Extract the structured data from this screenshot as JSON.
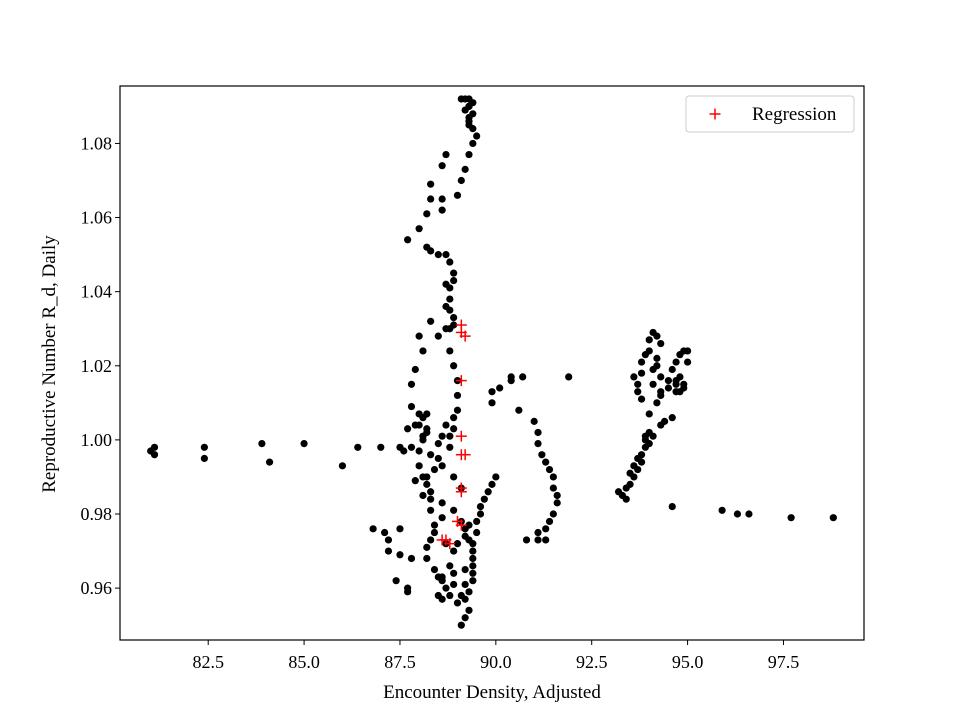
{
  "chart_data": {
    "type": "scatter",
    "title": "",
    "xlabel": "Encounter Density, Adjusted",
    "ylabel": "Reproductive Number R_d, Daily",
    "xlim": [
      80.2,
      99.6
    ],
    "ylim": [
      0.946,
      1.0955
    ],
    "xticks": [
      82.5,
      85.0,
      87.5,
      90.0,
      92.5,
      95.0,
      97.5
    ],
    "xtick_labels": [
      "82.5",
      "85.0",
      "87.5",
      "90.0",
      "92.5",
      "95.0",
      "97.5"
    ],
    "yticks": [
      0.96,
      0.98,
      1.0,
      1.02,
      1.04,
      1.06,
      1.08
    ],
    "ytick_labels": [
      "0.96",
      "0.98",
      "1.00",
      "1.02",
      "1.04",
      "1.06",
      "1.08"
    ],
    "grid": false,
    "legend": {
      "placement": "upper-right",
      "entries": [
        {
          "label": "Regression",
          "marker": "+",
          "color": "#ff0000"
        }
      ]
    },
    "colors": {
      "observed": "#000000",
      "regression": "#ff0000"
    },
    "series": [
      {
        "marker": "circle",
        "color": "#000000",
        "points": [
          [
            81.0,
            0.997
          ],
          [
            81.1,
            0.998
          ],
          [
            81.1,
            0.996
          ],
          [
            82.4,
            0.998
          ],
          [
            82.4,
            0.995
          ],
          [
            83.9,
            0.999
          ],
          [
            84.1,
            0.994
          ],
          [
            85.0,
            0.999
          ],
          [
            86.0,
            0.993
          ],
          [
            86.4,
            0.998
          ],
          [
            87.0,
            0.998
          ],
          [
            87.5,
            0.998
          ],
          [
            87.6,
            0.997
          ],
          [
            87.8,
            0.998
          ],
          [
            88.0,
            0.997
          ],
          [
            88.3,
            0.996
          ],
          [
            88.6,
            0.993
          ],
          [
            88.9,
            0.99
          ],
          [
            89.1,
            0.987
          ],
          [
            86.8,
            0.976
          ],
          [
            87.1,
            0.975
          ],
          [
            87.2,
            0.973
          ],
          [
            87.5,
            0.976
          ],
          [
            87.2,
            0.97
          ],
          [
            87.5,
            0.969
          ],
          [
            87.8,
            0.968
          ],
          [
            87.4,
            0.962
          ],
          [
            87.7,
            0.96
          ],
          [
            87.7,
            0.959
          ],
          [
            88.2,
            0.968
          ],
          [
            88.4,
            0.965
          ],
          [
            88.5,
            0.963
          ],
          [
            88.6,
            0.962
          ],
          [
            88.7,
            0.96
          ],
          [
            88.5,
            0.958
          ],
          [
            88.6,
            0.957
          ],
          [
            88.8,
            0.958
          ],
          [
            89.0,
            0.956
          ],
          [
            89.1,
            0.958
          ],
          [
            88.6,
            0.963
          ],
          [
            88.9,
            0.964
          ],
          [
            89.2,
            0.965
          ],
          [
            89.4,
            0.964
          ],
          [
            88.9,
            0.961
          ],
          [
            88.8,
            0.966
          ],
          [
            88.7,
            0.972
          ],
          [
            88.9,
            0.97
          ],
          [
            89.0,
            0.972
          ],
          [
            89.3,
            0.973
          ],
          [
            89.2,
            0.961
          ],
          [
            89.3,
            0.959
          ],
          [
            89.2,
            0.957
          ],
          [
            89.3,
            0.954
          ],
          [
            89.2,
            0.952
          ],
          [
            89.1,
            0.95
          ],
          [
            89.4,
            0.962
          ],
          [
            89.4,
            0.966
          ],
          [
            89.4,
            0.968
          ],
          [
            89.4,
            0.97
          ],
          [
            89.4,
            0.972
          ],
          [
            89.5,
            0.975
          ],
          [
            89.5,
            0.978
          ],
          [
            89.6,
            0.98
          ],
          [
            89.6,
            0.982
          ],
          [
            89.7,
            0.984
          ],
          [
            89.8,
            0.986
          ],
          [
            89.9,
            0.988
          ],
          [
            90.0,
            0.99
          ],
          [
            89.2,
            0.976
          ],
          [
            89.3,
            0.977
          ],
          [
            89.2,
            0.974
          ],
          [
            89.1,
            0.978
          ],
          [
            88.9,
            0.981
          ],
          [
            88.6,
            0.983
          ],
          [
            88.6,
            0.979
          ],
          [
            88.4,
            0.977
          ],
          [
            88.4,
            0.975
          ],
          [
            88.3,
            0.973
          ],
          [
            88.2,
            0.971
          ],
          [
            88.3,
            0.984
          ],
          [
            88.3,
            0.986
          ],
          [
            88.2,
            0.988
          ],
          [
            88.2,
            0.99
          ],
          [
            88.0,
            0.993
          ],
          [
            88.1,
            0.99
          ],
          [
            88.4,
            0.992
          ],
          [
            88.5,
            0.995
          ],
          [
            88.1,
            0.985
          ],
          [
            87.9,
            0.989
          ],
          [
            88.3,
            0.981
          ],
          [
            88.1,
            1.0
          ],
          [
            88.2,
            1.002
          ],
          [
            88.0,
            1.004
          ],
          [
            88.1,
            1.006
          ],
          [
            88.2,
            1.007
          ],
          [
            88.0,
            1.007
          ],
          [
            87.9,
            1.004
          ],
          [
            88.2,
            1.003
          ],
          [
            88.1,
            1.001
          ],
          [
            87.7,
            1.003
          ],
          [
            87.8,
            1.009
          ],
          [
            87.8,
            1.015
          ],
          [
            87.9,
            1.019
          ],
          [
            88.1,
            1.024
          ],
          [
            88.0,
            1.028
          ],
          [
            88.3,
            1.032
          ],
          [
            88.5,
            1.028
          ],
          [
            88.7,
            1.03
          ],
          [
            88.8,
            1.024
          ],
          [
            88.9,
            1.02
          ],
          [
            89.0,
            1.016
          ],
          [
            89.0,
            1.012
          ],
          [
            89.0,
            1.008
          ],
          [
            88.9,
            1.006
          ],
          [
            88.9,
            1.003
          ],
          [
            88.8,
            1.001
          ],
          [
            88.8,
            0.998
          ],
          [
            88.7,
            1.004
          ],
          [
            88.6,
            1.001
          ],
          [
            88.5,
            0.999
          ],
          [
            88.8,
            1.038
          ],
          [
            88.8,
            1.041
          ],
          [
            88.9,
            1.043
          ],
          [
            88.9,
            1.045
          ],
          [
            88.8,
            1.048
          ],
          [
            88.7,
            1.05
          ],
          [
            88.5,
            1.05
          ],
          [
            88.3,
            1.051
          ],
          [
            88.2,
            1.052
          ],
          [
            88.8,
            1.035
          ],
          [
            88.9,
            1.033
          ],
          [
            88.9,
            1.031
          ],
          [
            88.8,
            1.03
          ],
          [
            88.7,
            1.036
          ],
          [
            88.7,
            1.042
          ],
          [
            88.0,
            1.057
          ],
          [
            87.7,
            1.054
          ],
          [
            88.2,
            1.061
          ],
          [
            88.3,
            1.065
          ],
          [
            88.3,
            1.069
          ],
          [
            88.6,
            1.074
          ],
          [
            88.7,
            1.077
          ],
          [
            88.6,
            1.065
          ],
          [
            88.6,
            1.062
          ],
          [
            89.0,
            1.066
          ],
          [
            89.1,
            1.07
          ],
          [
            89.2,
            1.073
          ],
          [
            89.3,
            1.077
          ],
          [
            89.4,
            1.08
          ],
          [
            89.5,
            1.082
          ],
          [
            89.3,
            1.085
          ],
          [
            89.3,
            1.087
          ],
          [
            89.4,
            1.088
          ],
          [
            89.3,
            1.09
          ],
          [
            89.2,
            1.092
          ],
          [
            89.1,
            1.092
          ],
          [
            89.3,
            1.092
          ],
          [
            89.4,
            1.091
          ],
          [
            89.3,
            1.09
          ],
          [
            89.2,
            1.089
          ],
          [
            89.3,
            1.086
          ],
          [
            89.4,
            1.084
          ],
          [
            89.9,
            1.013
          ],
          [
            89.9,
            1.01
          ],
          [
            90.1,
            1.014
          ],
          [
            90.4,
            1.016
          ],
          [
            90.4,
            1.017
          ],
          [
            90.7,
            1.017
          ],
          [
            90.6,
            1.008
          ],
          [
            91.9,
            1.017
          ],
          [
            91.0,
            1.005
          ],
          [
            91.1,
            1.002
          ],
          [
            91.1,
            0.999
          ],
          [
            91.2,
            0.996
          ],
          [
            91.3,
            0.994
          ],
          [
            91.4,
            0.992
          ],
          [
            91.5,
            0.99
          ],
          [
            91.5,
            0.987
          ],
          [
            91.6,
            0.985
          ],
          [
            91.6,
            0.983
          ],
          [
            91.5,
            0.98
          ],
          [
            91.4,
            0.978
          ],
          [
            91.3,
            0.976
          ],
          [
            91.1,
            0.975
          ],
          [
            91.1,
            0.973
          ],
          [
            91.3,
            0.973
          ],
          [
            90.8,
            0.973
          ],
          [
            93.2,
            0.986
          ],
          [
            93.3,
            0.985
          ],
          [
            93.4,
            0.987
          ],
          [
            93.4,
            0.984
          ],
          [
            93.5,
            0.988
          ],
          [
            93.5,
            0.991
          ],
          [
            93.6,
            0.993
          ],
          [
            93.7,
            0.995
          ],
          [
            93.8,
            0.996
          ],
          [
            93.9,
            0.998
          ],
          [
            93.9,
            1.0
          ],
          [
            93.9,
            1.001
          ],
          [
            94.0,
            1.002
          ],
          [
            94.1,
            1.001
          ],
          [
            94.0,
            0.999
          ],
          [
            93.8,
            0.994
          ],
          [
            93.7,
            0.992
          ],
          [
            93.6,
            0.99
          ],
          [
            94.0,
            1.007
          ],
          [
            94.2,
            1.01
          ],
          [
            94.3,
            1.012
          ],
          [
            94.5,
            1.014
          ],
          [
            94.7,
            1.013
          ],
          [
            94.8,
            1.013
          ],
          [
            94.9,
            1.015
          ],
          [
            94.8,
            1.017
          ],
          [
            94.7,
            1.015
          ],
          [
            94.5,
            1.016
          ],
          [
            94.3,
            1.017
          ],
          [
            94.2,
            1.02
          ],
          [
            94.2,
            1.022
          ],
          [
            94.0,
            1.024
          ],
          [
            94.0,
            1.027
          ],
          [
            94.1,
            1.029
          ],
          [
            94.2,
            1.028
          ],
          [
            94.3,
            1.026
          ],
          [
            94.1,
            1.019
          ],
          [
            93.6,
            1.017
          ],
          [
            93.7,
            1.015
          ],
          [
            93.8,
            1.018
          ],
          [
            93.8,
            1.021
          ],
          [
            93.9,
            1.023
          ],
          [
            93.7,
            1.013
          ],
          [
            93.8,
            1.011
          ],
          [
            94.3,
            1.004
          ],
          [
            94.4,
            1.005
          ],
          [
            94.6,
            1.006
          ],
          [
            94.1,
            1.015
          ],
          [
            94.3,
            1.013
          ],
          [
            94.6,
            1.019
          ],
          [
            94.7,
            1.021
          ],
          [
            94.8,
            1.023
          ],
          [
            94.9,
            1.024
          ],
          [
            95.0,
            1.024
          ],
          [
            95.0,
            1.021
          ],
          [
            94.9,
            1.014
          ],
          [
            94.7,
            1.016
          ],
          [
            94.6,
            0.982
          ],
          [
            95.9,
            0.981
          ],
          [
            96.3,
            0.98
          ],
          [
            96.6,
            0.98
          ],
          [
            97.7,
            0.979
          ],
          [
            98.8,
            0.979
          ]
        ]
      },
      {
        "name": "Regression",
        "marker": "+",
        "color": "#ff0000",
        "points": [
          [
            89.1,
            1.031
          ],
          [
            89.1,
            1.029
          ],
          [
            89.2,
            1.028
          ],
          [
            89.1,
            1.016
          ],
          [
            89.1,
            1.001
          ],
          [
            89.1,
            0.996
          ],
          [
            89.2,
            0.996
          ],
          [
            89.1,
            0.987
          ],
          [
            89.1,
            0.986
          ],
          [
            89.0,
            0.978
          ],
          [
            89.1,
            0.977
          ],
          [
            88.6,
            0.973
          ],
          [
            88.7,
            0.973
          ],
          [
            88.8,
            0.972
          ]
        ]
      }
    ]
  }
}
